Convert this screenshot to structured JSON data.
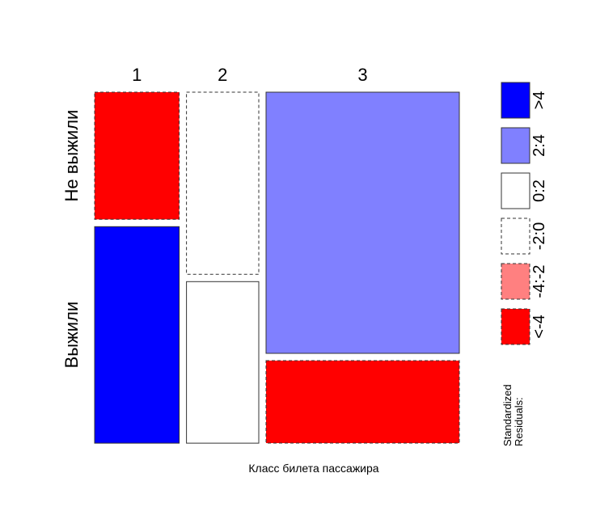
{
  "chart_data": {
    "type": "mosaic",
    "xlabel": "Класс билета пассажира",
    "x_categories": [
      "1",
      "2",
      "3"
    ],
    "y_categories": [
      "Не выжили",
      "Выжили"
    ],
    "column_proportions": [
      0.2416,
      0.2065,
      0.5519
    ],
    "cells": [
      {
        "x": "1",
        "y": "Не выжили",
        "proportion": 0.37,
        "residual_bin": "<-4"
      },
      {
        "x": "1",
        "y": "Выжили",
        "proportion": 0.63,
        "residual_bin": ">4"
      },
      {
        "x": "2",
        "y": "Не выжили",
        "proportion": 0.53,
        "residual_bin": "-2:0"
      },
      {
        "x": "2",
        "y": "Выжили",
        "proportion": 0.47,
        "residual_bin": "0:2"
      },
      {
        "x": "3",
        "y": "Не выжили",
        "proportion": 0.76,
        "residual_bin": "2:4"
      },
      {
        "x": "3",
        "y": "Выжили",
        "proportion": 0.24,
        "residual_bin": "<-4"
      }
    ],
    "legend": {
      "title_lines": [
        "Standardized",
        "Residuals:"
      ],
      "entries": [
        {
          "label": ">4",
          "color": "#0000ff",
          "dashed": false
        },
        {
          "label": "2:4",
          "color": "#8080ff",
          "dashed": false
        },
        {
          "label": "0:2",
          "color": "#ffffff",
          "dashed": false
        },
        {
          "label": "-2:0",
          "color": "#ffffff",
          "dashed": true
        },
        {
          "label": "-4:-2",
          "color": "#ff8080",
          "dashed": true
        },
        {
          "label": "<-4",
          "color": "#ff0000",
          "dashed": true
        }
      ]
    }
  }
}
